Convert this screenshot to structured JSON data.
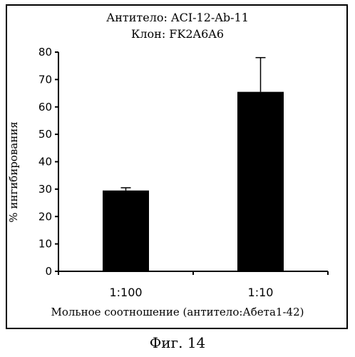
{
  "chart_data": {
    "type": "bar",
    "title": "Антитело: ACI-12-Ab-11",
    "subtitle": "Клон: FK2A6A6",
    "xlabel": "Мольное соотношение (антитело:Абета1-42)",
    "ylabel": "% ингибирования",
    "categories": [
      "1:100",
      "1:10"
    ],
    "values": [
      29.5,
      65.5
    ],
    "error_bars": [
      1,
      12.5
    ],
    "ylim": [
      0,
      80
    ],
    "yticks": [
      0,
      10,
      20,
      30,
      40,
      50,
      60,
      70,
      80
    ],
    "grid": false,
    "legend": "none",
    "bar_color": "#000000"
  },
  "caption": "Фиг. 14"
}
